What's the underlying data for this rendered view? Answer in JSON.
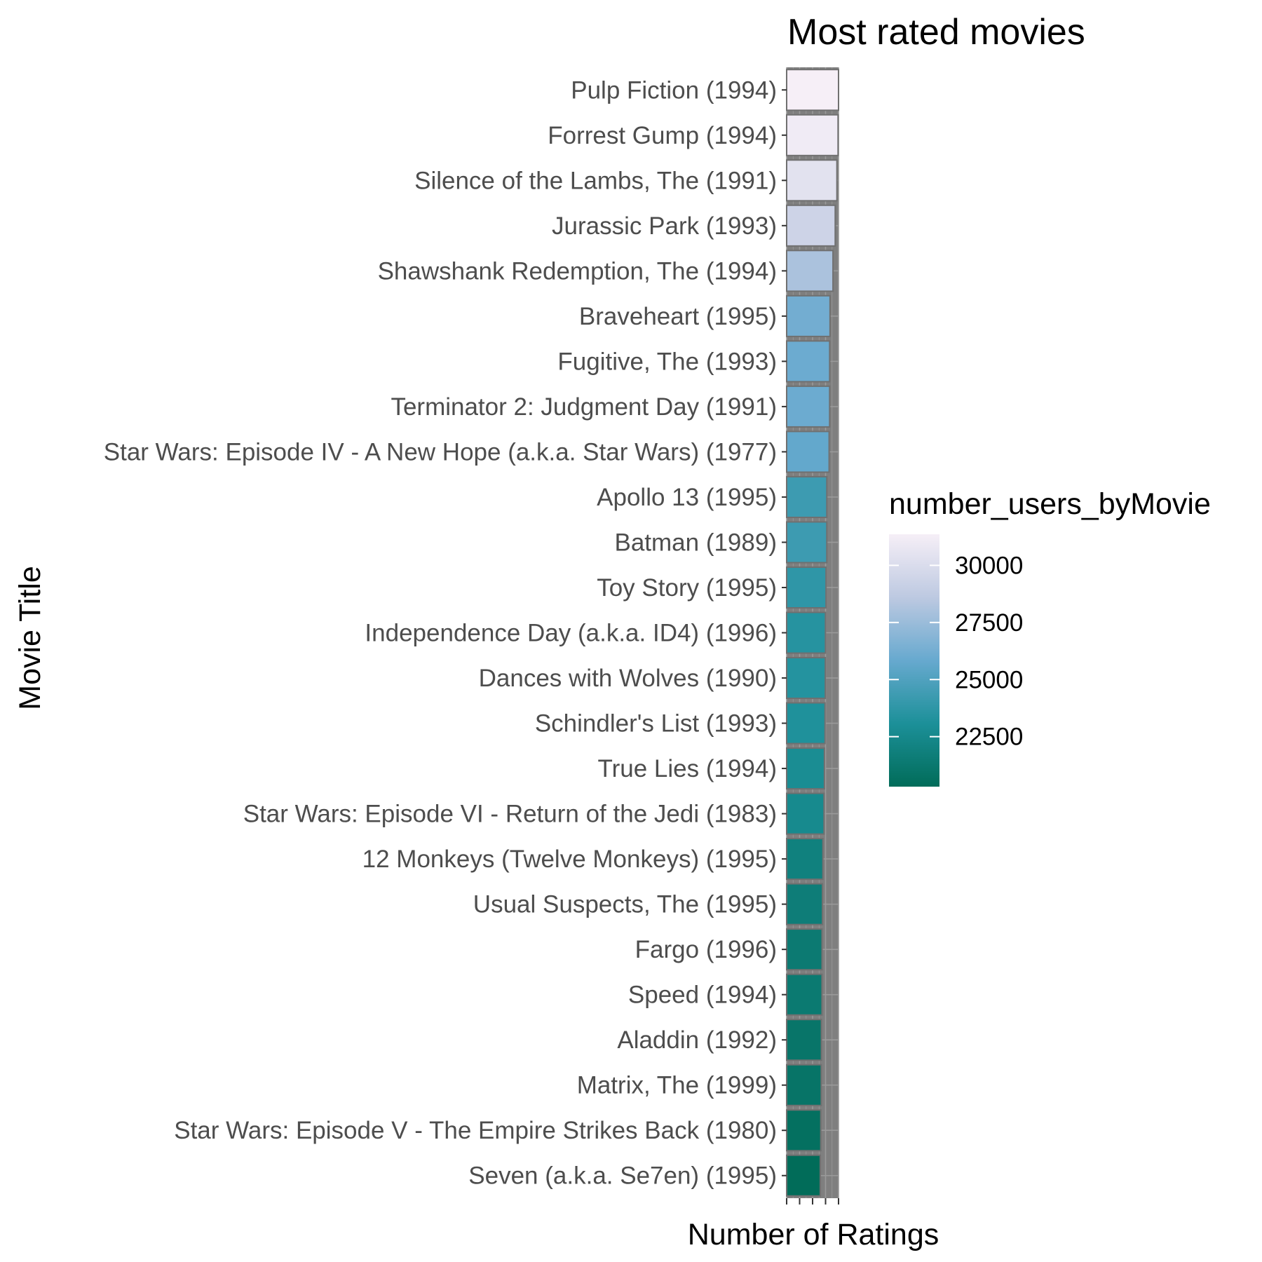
{
  "chart_data": {
    "type": "bar",
    "orientation": "horizontal",
    "title": "Most rated movies",
    "xlabel": "Number of Ratings",
    "ylabel": "Movie Title",
    "xlim": [
      0,
      31362
    ],
    "grid": true,
    "panel_background": "#7f7f7f",
    "legend_position": "right",
    "categories": [
      "Pulp Fiction (1994)",
      "Forrest Gump (1994)",
      "Silence of the Lambs, The (1991)",
      "Jurassic Park (1993)",
      "Shawshank Redemption, The (1994)",
      "Braveheart (1995)",
      "Fugitive, The (1993)",
      "Terminator 2: Judgment Day (1991)",
      "Star Wars: Episode IV - A New Hope (a.k.a. Star Wars) (1977)",
      "Apollo 13 (1995)",
      "Batman (1989)",
      "Toy Story (1995)",
      "Independence Day (a.k.a. ID4) (1996)",
      "Dances with Wolves (1990)",
      "Schindler's List (1993)",
      "True Lies (1994)",
      "Star Wars: Episode VI - Return of the Jedi (1983)",
      "12 Monkeys (Twelve Monkeys) (1995)",
      "Usual Suspects, The (1995)",
      "Fargo (1996)",
      "Speed (1994)",
      "Aladdin (1992)",
      "Matrix, The (1999)",
      "Star Wars: Episode V - The Empire Strikes Back (1980)",
      "Seven (a.k.a. Se7en) (1995)"
    ],
    "series": [
      {
        "values": [
          31362,
          31079,
          30382,
          29360,
          28015,
          26212,
          25998,
          25984,
          25672,
          24284,
          24277,
          23790,
          23449,
          23367,
          23193,
          22823,
          22584,
          21891,
          21648,
          21395,
          21361,
          21000,
          20908,
          20622,
          20311
        ]
      }
    ],
    "legend": {
      "title": "number_users_byMovie",
      "min": 20311,
      "max": 31362,
      "ticks": [
        30000,
        27500,
        25000,
        22500
      ],
      "tick_labels": [
        "30000",
        "27500",
        "25000",
        "22500"
      ],
      "gradient": [
        "#016C59",
        "#1C9099",
        "#67A9CF",
        "#BDC9E1",
        "#F6EFF7"
      ]
    }
  }
}
